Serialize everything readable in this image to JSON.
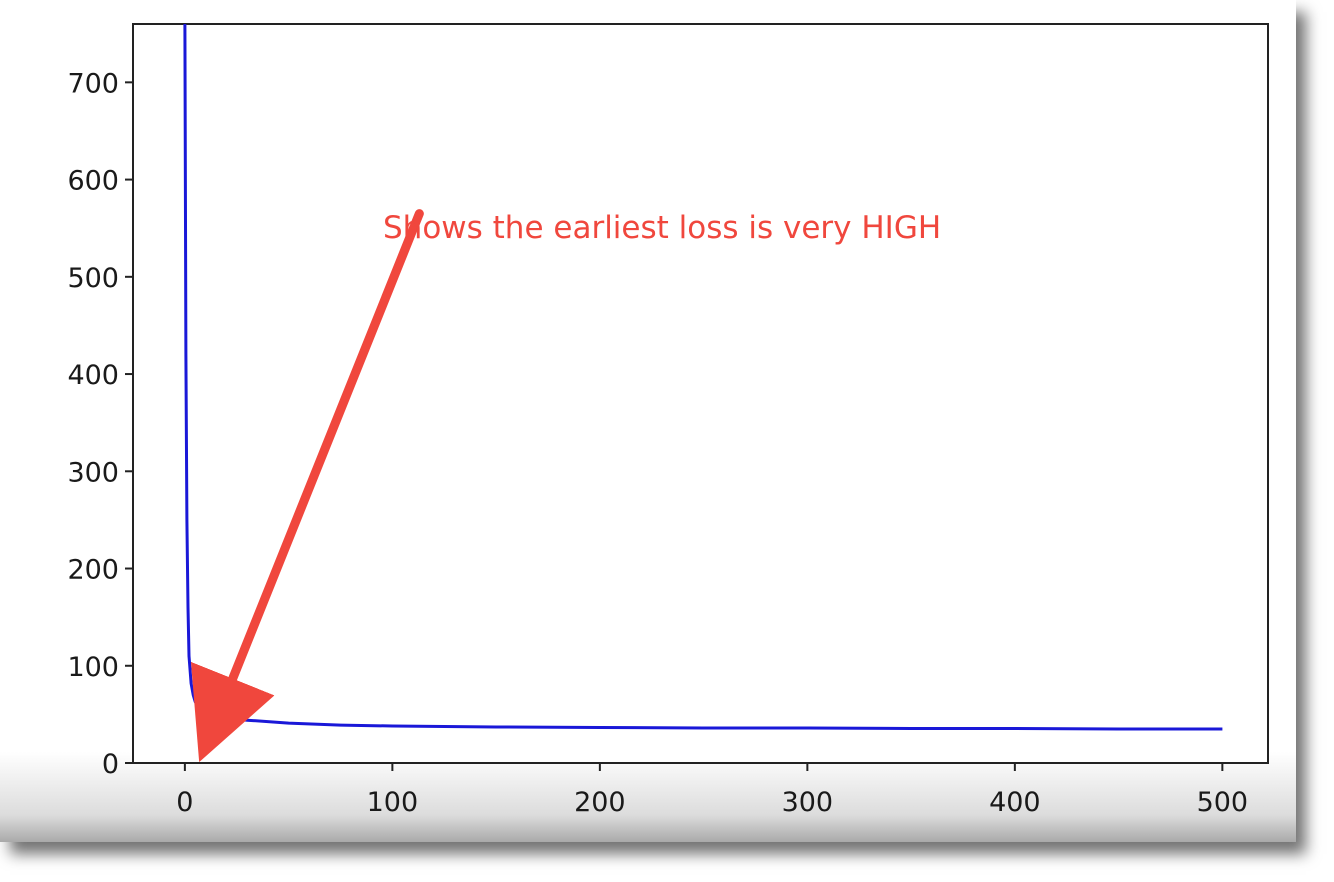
{
  "colors": {
    "line": "#1a18d8",
    "annotation": "#f0473d",
    "axis": "#222222"
  },
  "annotation": {
    "text": "Shows the earliest loss is very HIGH",
    "arrow_from": [
      113,
      565
    ],
    "arrow_to": [
      15,
      47
    ]
  },
  "chart_data": {
    "type": "line",
    "title": "",
    "xlabel": "",
    "ylabel": "",
    "xlim": [
      -25,
      522
    ],
    "ylim": [
      0,
      760
    ],
    "grid": false,
    "x_ticks": [
      0,
      100,
      200,
      300,
      400,
      500
    ],
    "y_ticks": [
      0,
      100,
      200,
      300,
      400,
      500,
      600,
      700
    ],
    "x_tick_labels": [
      "0",
      "100",
      "200",
      "300",
      "400",
      "500"
    ],
    "y_tick_labels": [
      "0",
      "100",
      "200",
      "300",
      "400",
      "500",
      "600",
      "700"
    ],
    "series": [
      {
        "x": [
          0,
          0.5,
          1,
          1.5,
          2,
          3,
          4,
          5,
          7,
          10,
          15,
          20,
          30,
          50,
          75,
          100,
          150,
          200,
          250,
          300,
          350,
          400,
          450,
          500
        ],
        "y": [
          760,
          420,
          250,
          160,
          110,
          82,
          70,
          63,
          57,
          52,
          48,
          46,
          44,
          41,
          39,
          38,
          37,
          36.5,
          36,
          36,
          35.5,
          35.5,
          35,
          35
        ]
      }
    ]
  }
}
